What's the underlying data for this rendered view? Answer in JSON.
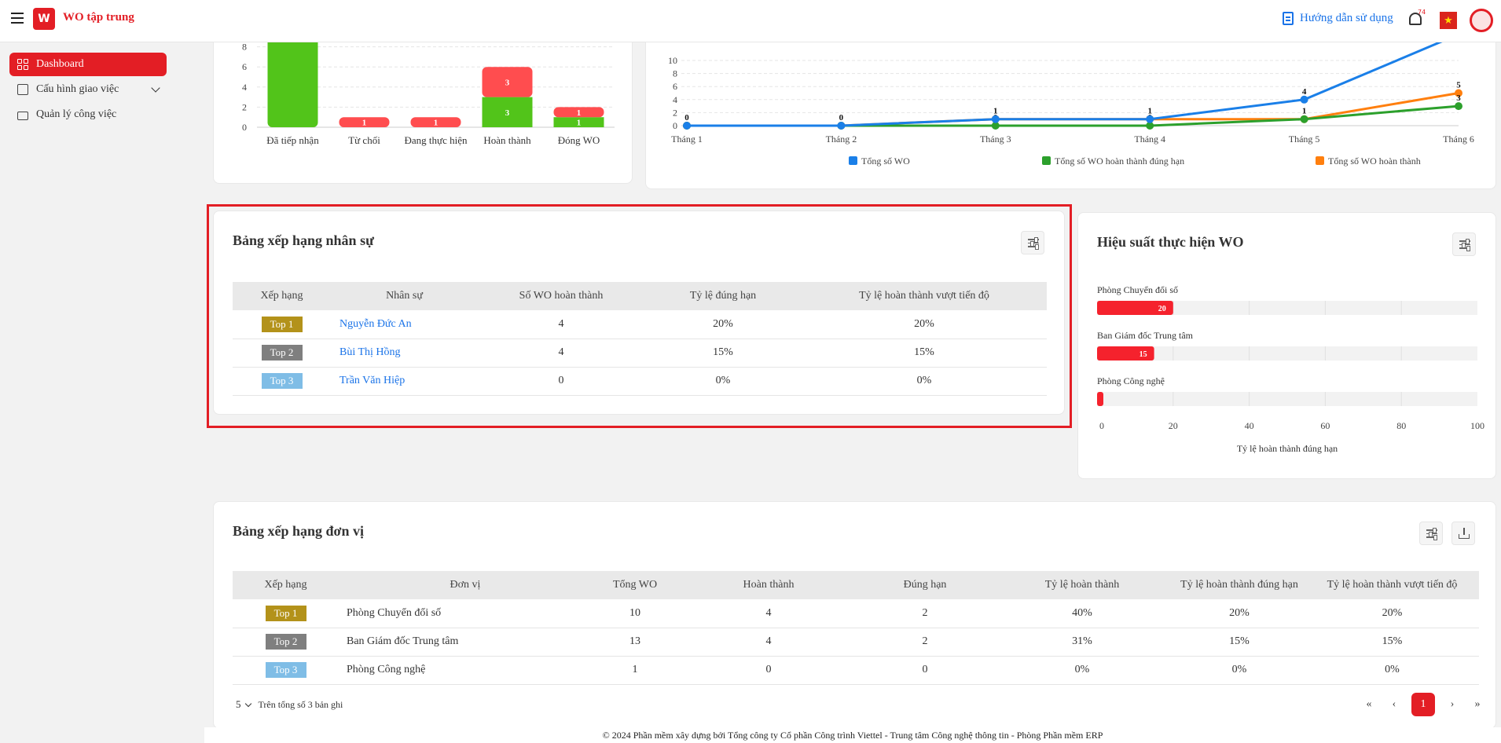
{
  "header": {
    "app_title": "WO tập trung",
    "logo_text": "W",
    "guide_label": "Hướng dẫn sử dụng",
    "notif_count": "74",
    "flag_star": "★"
  },
  "sidebar": {
    "items": [
      {
        "label": "Dashboard"
      },
      {
        "label": "Cấu hình giao việc"
      },
      {
        "label": "Quản lý công việc"
      }
    ]
  },
  "status_chart": {
    "chart_data": {
      "type": "bar",
      "categories": [
        "Đã tiếp nhận",
        "Từ chối",
        "Đang thực hiện",
        "Hoàn thành",
        "Đóng WO"
      ],
      "y_ticks": [
        "0",
        "2",
        "4",
        "6",
        "8"
      ],
      "ylim": [
        0,
        10
      ],
      "series": [
        {
          "color": "#52c41a",
          "values": [
            10,
            0,
            0,
            3,
            1
          ]
        },
        {
          "color": "#ff4d4f",
          "values": [
            0,
            1,
            1,
            3,
            1
          ]
        }
      ],
      "labels": [
        [
          "",
          "",
          "",
          "3",
          "1"
        ],
        [
          "",
          "1",
          "1",
          "3",
          "1"
        ]
      ]
    }
  },
  "line_chart": {
    "chart_data": {
      "type": "line",
      "categories": [
        "Tháng 1",
        "Tháng 2",
        "Tháng 3",
        "Tháng 4",
        "Tháng 5",
        "Tháng 6"
      ],
      "y_ticks": [
        "0",
        "2",
        "4",
        "6",
        "8",
        "10"
      ],
      "ylim": [
        0,
        10
      ],
      "legend_position": "bottom",
      "series": [
        {
          "name": "Tổng số WO",
          "color": "#1a7fe8",
          "values": [
            0,
            0,
            1,
            1,
            4,
            14
          ],
          "labels": [
            "0",
            "0",
            "1",
            "1",
            "4",
            ""
          ]
        },
        {
          "name": "Tổng số WO hoàn thành đúng hạn",
          "color": "#2ca02c",
          "values": [
            0,
            0,
            0,
            0,
            1,
            3
          ],
          "labels": [
            "",
            "",
            "0",
            "0",
            "",
            "3"
          ]
        },
        {
          "name": "Tổng số WO hoàn thành",
          "color": "#ff7f0e",
          "values": [
            0,
            0,
            1,
            1,
            1,
            5
          ],
          "labels": [
            "",
            "",
            "",
            "",
            "1",
            "5"
          ]
        }
      ]
    }
  },
  "staff_ranking": {
    "title": "Bảng xếp hạng nhân sự",
    "columns": [
      "Xếp hạng",
      "Nhân sự",
      "Số WO hoàn thành",
      "Tỷ lệ đúng hạn",
      "Tỷ lệ hoàn thành vượt tiến độ"
    ],
    "rows": [
      {
        "rank": "Top 1",
        "name": "Nguyễn Đức An",
        "completed": "4",
        "ontime": "20%",
        "ahead": "20%"
      },
      {
        "rank": "Top 2",
        "name": "Bùi Thị Hồng",
        "completed": "4",
        "ontime": "15%",
        "ahead": "15%"
      },
      {
        "rank": "Top 3",
        "name": "Trần Văn Hiệp",
        "completed": "0",
        "ontime": "0%",
        "ahead": "0%"
      }
    ]
  },
  "performance": {
    "title": "Hiệu suất thực hiện WO",
    "chart_data": {
      "type": "bar",
      "orientation": "horizontal",
      "categories": [
        "Phòng Chuyển đổi số",
        "Ban Giám đốc Trung tâm",
        "Phòng Công nghệ"
      ],
      "values": [
        20,
        15,
        0
      ],
      "value_labels": [
        "20",
        "15",
        ""
      ],
      "x_ticks": [
        "0",
        "20",
        "40",
        "60",
        "80",
        "100"
      ],
      "xlim": [
        0,
        100
      ],
      "xlabel": "Tỷ lệ hoàn thành đúng hạn"
    }
  },
  "unit_ranking": {
    "title": "Bảng xếp hạng đơn vị",
    "columns": [
      "Xếp hạng",
      "Đơn vị",
      "Tổng WO",
      "Hoàn thành",
      "Đúng hạn",
      "Tỷ lệ hoàn thành",
      "Tỷ lệ hoàn thành đúng hạn",
      "Tỷ lệ hoàn thành vượt tiến độ"
    ],
    "rows": [
      {
        "rank": "Top 1",
        "unit": "Phòng Chuyển đổi số",
        "total": "10",
        "done": "4",
        "ontime": "2",
        "rate": "40%",
        "ontime_rate": "20%",
        "ahead_rate": "20%"
      },
      {
        "rank": "Top 2",
        "unit": "Ban Giám đốc Trung tâm",
        "total": "13",
        "done": "4",
        "ontime": "2",
        "rate": "31%",
        "ontime_rate": "15%",
        "ahead_rate": "15%"
      },
      {
        "rank": "Top 3",
        "unit": "Phòng Công nghệ",
        "total": "1",
        "done": "0",
        "ontime": "0",
        "rate": "0%",
        "ontime_rate": "0%",
        "ahead_rate": "0%"
      }
    ],
    "page_size": "5",
    "total_text": "Trên tổng số 3 bản ghi",
    "current_page": "1",
    "pager": {
      "first": "«",
      "prev": "‹",
      "next": "›",
      "last": "»"
    }
  },
  "footer": "© 2024 Phần mềm xây dựng bởi Tổng công ty Cổ phần Công trình Viettel - Trung tâm Công nghệ thông tin - Phòng Phần mềm ERP"
}
